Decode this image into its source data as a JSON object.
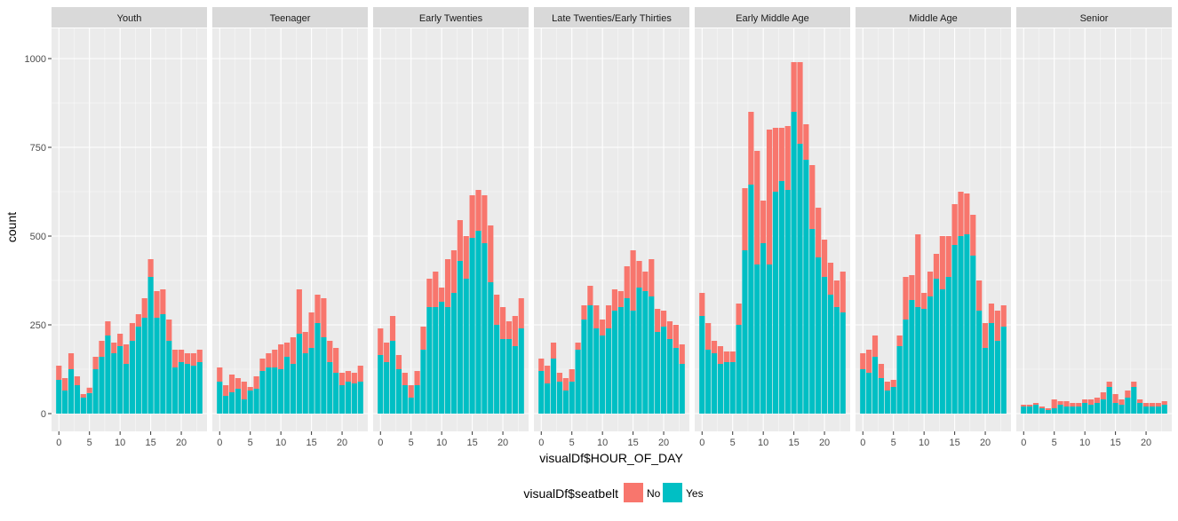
{
  "chart_data": {
    "type": "bar",
    "stacked": true,
    "facet_variable": "age group",
    "facets": [
      "Youth",
      "Teenager",
      "Early Twenties",
      "Late Twenties/Early Thirties",
      "Early Middle Age",
      "Middle Age",
      "Senior"
    ],
    "x": [
      0,
      1,
      2,
      3,
      4,
      5,
      6,
      7,
      8,
      9,
      10,
      11,
      12,
      13,
      14,
      15,
      16,
      17,
      18,
      19,
      20,
      21,
      22,
      23
    ],
    "xlabel": "visualDf$HOUR_OF_DAY",
    "ylabel": "count",
    "xticks": [
      0,
      5,
      10,
      15,
      20
    ],
    "yticks": [
      0,
      250,
      500,
      750,
      1000
    ],
    "ylim": [
      0,
      1000
    ],
    "grid": true,
    "legend": {
      "title": "visualDf$seatbelt",
      "position": "bottom",
      "entries": [
        "No",
        "Yes"
      ]
    },
    "colors": {
      "No": "#F8766D",
      "Yes": "#00BFC4",
      "panel_bg": "#EBEBEB",
      "strip_bg": "#D9D9D9",
      "grid": "#FFFFFF"
    },
    "panels": [
      {
        "facet": "Youth",
        "Yes": [
          95,
          65,
          125,
          80,
          45,
          58,
          125,
          160,
          220,
          170,
          190,
          140,
          205,
          245,
          270,
          385,
          270,
          280,
          205,
          130,
          145,
          140,
          135,
          145
        ],
        "No": [
          40,
          35,
          45,
          25,
          10,
          15,
          35,
          45,
          40,
          30,
          35,
          55,
          50,
          35,
          55,
          50,
          75,
          70,
          60,
          50,
          35,
          30,
          35,
          35
        ]
      },
      {
        "facet": "Teenager",
        "Yes": [
          90,
          50,
          60,
          70,
          40,
          65,
          70,
          120,
          130,
          130,
          125,
          160,
          140,
          225,
          170,
          185,
          255,
          215,
          145,
          115,
          80,
          90,
          85,
          90
        ],
        "No": [
          40,
          30,
          50,
          30,
          50,
          10,
          35,
          35,
          40,
          50,
          70,
          40,
          75,
          125,
          60,
          100,
          80,
          110,
          60,
          70,
          35,
          30,
          30,
          45
        ]
      },
      {
        "facet": "Early Twenties",
        "Yes": [
          165,
          145,
          205,
          125,
          80,
          45,
          80,
          180,
          300,
          300,
          315,
          300,
          340,
          430,
          380,
          495,
          515,
          480,
          370,
          250,
          210,
          210,
          190,
          240
        ],
        "No": [
          75,
          55,
          70,
          40,
          35,
          35,
          40,
          65,
          80,
          100,
          40,
          135,
          120,
          115,
          120,
          120,
          115,
          135,
          160,
          85,
          90,
          50,
          85,
          85
        ]
      },
      {
        "facet": "Late Twenties/Early Thirties",
        "Yes": [
          120,
          85,
          155,
          90,
          65,
          90,
          180,
          265,
          305,
          240,
          220,
          240,
          290,
          300,
          325,
          290,
          355,
          345,
          330,
          230,
          245,
          210,
          185,
          140
        ],
        "No": [
          35,
          50,
          45,
          25,
          35,
          35,
          20,
          40,
          55,
          65,
          45,
          65,
          60,
          45,
          90,
          170,
          75,
          55,
          105,
          65,
          45,
          50,
          65,
          55
        ]
      },
      {
        "facet": "Early Middle Age",
        "Yes": [
          275,
          180,
          170,
          140,
          145,
          145,
          250,
          460,
          645,
          420,
          480,
          420,
          625,
          655,
          630,
          850,
          760,
          715,
          520,
          440,
          385,
          335,
          300,
          285
        ],
        "No": [
          65,
          75,
          35,
          50,
          30,
          30,
          60,
          175,
          205,
          320,
          120,
          380,
          180,
          150,
          180,
          140,
          230,
          100,
          180,
          140,
          105,
          90,
          75,
          115
        ]
      },
      {
        "facet": "Middle Age",
        "Yes": [
          125,
          115,
          160,
          100,
          65,
          75,
          190,
          265,
          320,
          300,
          295,
          330,
          380,
          350,
          385,
          475,
          500,
          505,
          445,
          290,
          185,
          255,
          205,
          245
        ],
        "No": [
          45,
          65,
          60,
          40,
          25,
          20,
          30,
          120,
          70,
          205,
          45,
          70,
          70,
          150,
          115,
          115,
          125,
          115,
          115,
          85,
          70,
          55,
          85,
          60
        ]
      },
      {
        "facet": "Senior",
        "Yes": [
          20,
          20,
          25,
          15,
          10,
          15,
          25,
          20,
          20,
          20,
          30,
          25,
          30,
          40,
          75,
          30,
          25,
          45,
          75,
          30,
          20,
          20,
          20,
          25
        ],
        "No": [
          5,
          5,
          5,
          5,
          5,
          25,
          10,
          15,
          10,
          10,
          10,
          15,
          15,
          20,
          15,
          25,
          15,
          20,
          15,
          10,
          10,
          10,
          10,
          10
        ]
      }
    ]
  }
}
